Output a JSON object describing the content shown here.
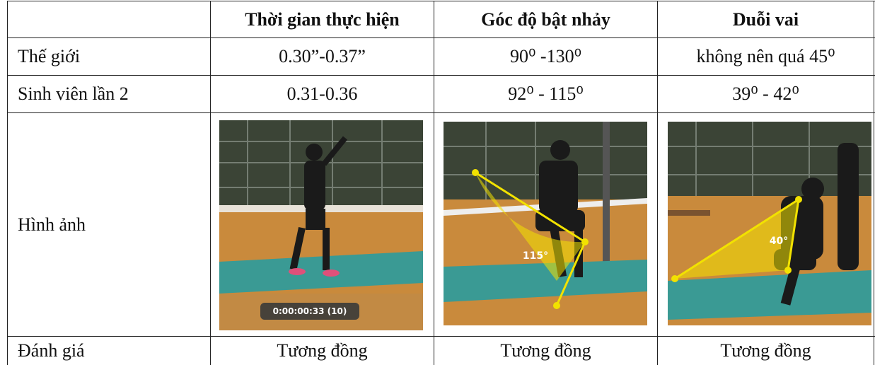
{
  "table": {
    "columns": [
      "Thời gian thực hiện",
      "Góc độ bật nhảy",
      "Duỗi vai"
    ],
    "rows": [
      {
        "label": "Thế giới",
        "cells": [
          "0.30”-0.37”",
          "90⁰ -130⁰",
          "không nên quá 45⁰"
        ]
      },
      {
        "label": "Sinh viên lần 2",
        "cells": [
          "0.31-0.36",
          "92⁰ - 115⁰",
          "39⁰ - 42⁰"
        ]
      }
    ],
    "image_row": {
      "label": "Hình ảnh",
      "overlays": [
        "0:00:00:33 (10)",
        "115°",
        "40°"
      ]
    },
    "evaluation": {
      "label": "Đánh giá",
      "cells": [
        "Tương đồng",
        "Tương đồng",
        "Tương đồng"
      ]
    }
  }
}
